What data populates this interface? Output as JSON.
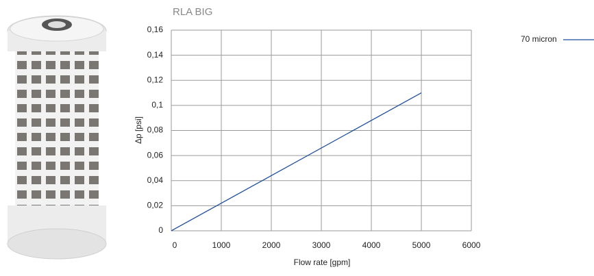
{
  "chart_data": {
    "type": "line",
    "title": "RLA BIG",
    "x_label": "Flow rate [gpm]",
    "y_label": "Δp [psi]",
    "x": [
      0,
      5000
    ],
    "series": [
      {
        "name": "70 micron",
        "color": "#1f4e9c",
        "values": [
          0,
          0.11
        ]
      }
    ],
    "xlim": [
      0,
      6000
    ],
    "xticks": [
      0,
      1000,
      2000,
      3000,
      4000,
      5000,
      6000
    ],
    "ylim": [
      0,
      0.16
    ],
    "yticks": [
      0,
      {
        "value": 0.02,
        "label": "0,02"
      },
      {
        "value": 0.04,
        "label": "0,04"
      },
      {
        "value": 0.06,
        "label": "0,06"
      },
      {
        "value": 0.08,
        "label": "0,08"
      },
      {
        "value": 0.1,
        "label": "0,1"
      },
      {
        "value": 0.12,
        "label": "0,12"
      },
      {
        "value": 0.14,
        "label": "0,14"
      },
      {
        "value": 0.16,
        "label": "0,16"
      }
    ],
    "grid": true
  }
}
